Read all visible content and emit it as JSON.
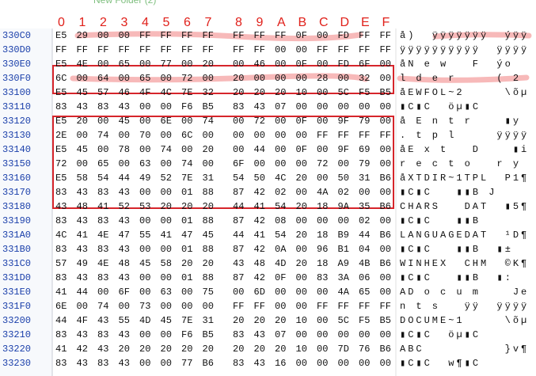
{
  "top_caption": "New Folder (2)",
  "column_headers": [
    "0",
    "1",
    "2",
    "3",
    "4",
    "5",
    "6",
    "7",
    "8",
    "9",
    "A",
    "B",
    "C",
    "D",
    "E",
    "F"
  ],
  "rows": [
    {
      "address": "330C0",
      "bytes": [
        "E5",
        "29",
        "00",
        "00",
        "FF",
        "FF",
        "FF",
        "FF",
        "FF",
        "FF",
        "FF",
        "0F",
        "00",
        "FD",
        "FF",
        "FF"
      ],
      "ascii": "å)  ÿÿÿÿÿÿÿ  ýÿÿ"
    },
    {
      "address": "330D0",
      "bytes": [
        "FF",
        "FF",
        "FF",
        "FF",
        "FF",
        "FF",
        "FF",
        "FF",
        "FF",
        "FF",
        "00",
        "00",
        "FF",
        "FF",
        "FF",
        "FF"
      ],
      "ascii": "ÿÿÿÿÿÿÿÿÿÿ  ÿÿÿÿ"
    },
    {
      "address": "330E0",
      "bytes": [
        "E5",
        "4E",
        "00",
        "65",
        "00",
        "77",
        "00",
        "20",
        "00",
        "46",
        "00",
        "0F",
        "00",
        "FD",
        "6F",
        "00"
      ],
      "ascii": "åN e w   F  ýo "
    },
    {
      "address": "330F0",
      "bytes": [
        "6C",
        "00",
        "64",
        "00",
        "65",
        "00",
        "72",
        "00",
        "20",
        "00",
        "00",
        "00",
        "28",
        "00",
        "32",
        "00"
      ],
      "ascii": "l d e r     ( 2 "
    },
    {
      "address": "33100",
      "bytes": [
        "E5",
        "45",
        "57",
        "46",
        "4F",
        "4C",
        "7E",
        "32",
        "20",
        "20",
        "20",
        "10",
        "00",
        "5C",
        "F5",
        "B5"
      ],
      "ascii": "åEWFOL~2     \\õµ"
    },
    {
      "address": "33110",
      "bytes": [
        "83",
        "43",
        "83",
        "43",
        "00",
        "00",
        "F6",
        "B5",
        "83",
        "43",
        "07",
        "00",
        "00",
        "00",
        "00",
        "00"
      ],
      "ascii": "▮C▮C  öµ▮C"
    },
    {
      "address": "33120",
      "bytes": [
        "E5",
        "20",
        "00",
        "45",
        "00",
        "6E",
        "00",
        "74",
        "00",
        "72",
        "00",
        "0F",
        "00",
        "9F",
        "79",
        "00"
      ],
      "ascii": "å E n t r    ▮y"
    },
    {
      "address": "33130",
      "bytes": [
        "2E",
        "00",
        "74",
        "00",
        "70",
        "00",
        "6C",
        "00",
        "00",
        "00",
        "00",
        "00",
        "FF",
        "FF",
        "FF",
        "FF"
      ],
      "ascii": ". t p l     ÿÿÿÿ"
    },
    {
      "address": "33140",
      "bytes": [
        "E5",
        "45",
        "00",
        "78",
        "00",
        "74",
        "00",
        "20",
        "00",
        "44",
        "00",
        "0F",
        "00",
        "9F",
        "69",
        "00"
      ],
      "ascii": "åE x t   D    ▮i"
    },
    {
      "address": "33150",
      "bytes": [
        "72",
        "00",
        "65",
        "00",
        "63",
        "00",
        "74",
        "00",
        "6F",
        "00",
        "00",
        "00",
        "72",
        "00",
        "79",
        "00"
      ],
      "ascii": "r e c t o   r y"
    },
    {
      "address": "33160",
      "bytes": [
        "E5",
        "58",
        "54",
        "44",
        "49",
        "52",
        "7E",
        "31",
        "54",
        "50",
        "4C",
        "20",
        "00",
        "50",
        "31",
        "B6"
      ],
      "ascii": "åXTDIR~1TPL  P1¶"
    },
    {
      "address": "33170",
      "bytes": [
        "83",
        "43",
        "83",
        "43",
        "00",
        "00",
        "01",
        "88",
        "87",
        "42",
        "02",
        "00",
        "4A",
        "02",
        "00",
        "00"
      ],
      "ascii": "▮C▮C   ▮▮B J"
    },
    {
      "address": "33180",
      "bytes": [
        "43",
        "48",
        "41",
        "52",
        "53",
        "20",
        "20",
        "20",
        "44",
        "41",
        "54",
        "20",
        "18",
        "9A",
        "35",
        "B6"
      ],
      "ascii": "CHARS   DAT  ▮5¶"
    },
    {
      "address": "33190",
      "bytes": [
        "83",
        "43",
        "83",
        "43",
        "00",
        "00",
        "01",
        "88",
        "87",
        "42",
        "08",
        "00",
        "00",
        "00",
        "02",
        "00"
      ],
      "ascii": "▮C▮C   ▮▮B"
    },
    {
      "address": "331A0",
      "bytes": [
        "4C",
        "41",
        "4E",
        "47",
        "55",
        "41",
        "47",
        "45",
        "44",
        "41",
        "54",
        "20",
        "18",
        "B9",
        "44",
        "B6"
      ],
      "ascii": "LANGUAGEDAT  ¹D¶"
    },
    {
      "address": "331B0",
      "bytes": [
        "83",
        "43",
        "83",
        "43",
        "00",
        "00",
        "01",
        "88",
        "87",
        "42",
        "0A",
        "00",
        "96",
        "B1",
        "04",
        "00"
      ],
      "ascii": "▮C▮C   ▮▮B  ▮±"
    },
    {
      "address": "331C0",
      "bytes": [
        "57",
        "49",
        "4E",
        "48",
        "45",
        "58",
        "20",
        "20",
        "43",
        "48",
        "4D",
        "20",
        "18",
        "A9",
        "4B",
        "B6"
      ],
      "ascii": "WINHEX  CHM  ©K¶"
    },
    {
      "address": "331D0",
      "bytes": [
        "83",
        "43",
        "83",
        "43",
        "00",
        "00",
        "01",
        "88",
        "87",
        "42",
        "0F",
        "00",
        "83",
        "3A",
        "06",
        "00"
      ],
      "ascii": "▮C▮C   ▮▮B  ▮:"
    },
    {
      "address": "331E0",
      "bytes": [
        "41",
        "44",
        "00",
        "6F",
        "00",
        "63",
        "00",
        "75",
        "00",
        "6D",
        "00",
        "00",
        "00",
        "4A",
        "65",
        "00"
      ],
      "ascii": "AD o c u m    Je"
    },
    {
      "address": "331F0",
      "bytes": [
        "6E",
        "00",
        "74",
        "00",
        "73",
        "00",
        "00",
        "00",
        "FF",
        "FF",
        "00",
        "00",
        "FF",
        "FF",
        "FF",
        "FF"
      ],
      "ascii": "n t s   ÿÿ  ÿÿÿÿ"
    },
    {
      "address": "33200",
      "bytes": [
        "44",
        "4F",
        "43",
        "55",
        "4D",
        "45",
        "7E",
        "31",
        "20",
        "20",
        "20",
        "10",
        "00",
        "5C",
        "F5",
        "B5"
      ],
      "ascii": "DOCUME~1     \\õµ"
    },
    {
      "address": "33210",
      "bytes": [
        "83",
        "43",
        "83",
        "43",
        "00",
        "00",
        "F6",
        "B5",
        "83",
        "43",
        "07",
        "00",
        "00",
        "00",
        "00",
        "00"
      ],
      "ascii": "▮C▮C  öµ▮C"
    },
    {
      "address": "33220",
      "bytes": [
        "41",
        "42",
        "43",
        "20",
        "20",
        "20",
        "20",
        "20",
        "20",
        "20",
        "20",
        "10",
        "00",
        "7D",
        "76",
        "B6"
      ],
      "ascii": "ABC          }v¶"
    },
    {
      "address": "33230",
      "bytes": [
        "83",
        "43",
        "83",
        "43",
        "00",
        "00",
        "77",
        "B6",
        "83",
        "43",
        "16",
        "00",
        "00",
        "00",
        "00",
        "00"
      ],
      "ascii": "▮C▮C  w¶▮C"
    }
  ]
}
